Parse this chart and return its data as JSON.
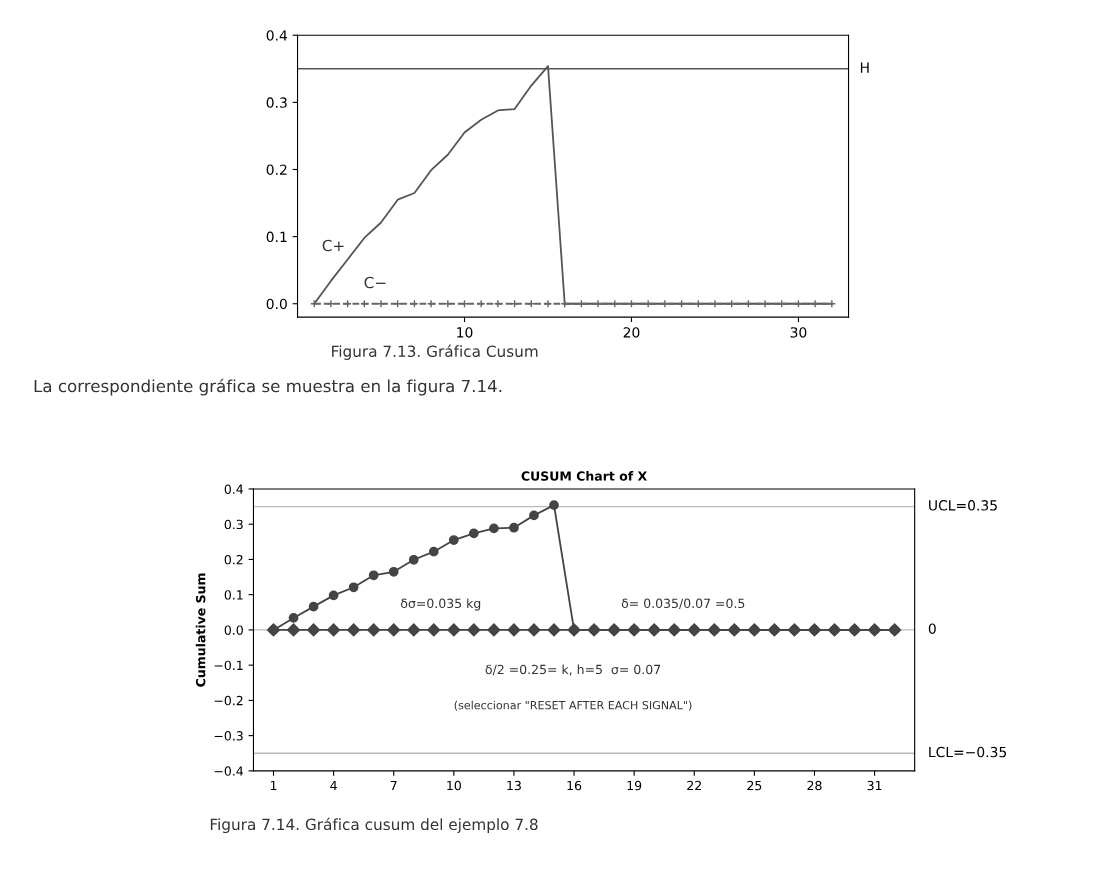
{
  "chart_data": [
    {
      "type": "line",
      "x": [
        1,
        2,
        3,
        4,
        5,
        6,
        7,
        8,
        9,
        10,
        11,
        12,
        13,
        14,
        15,
        16,
        17,
        18,
        19,
        20,
        21,
        22,
        23,
        24,
        25,
        26,
        27,
        28,
        29,
        30,
        31,
        32
      ],
      "series": [
        {
          "color": "#555555",
          "marker": "none",
          "line_style": "solid",
          "values": [
            0,
            0.034,
            0.066,
            0.098,
            0.121,
            0.155,
            0.165,
            0.199,
            0.222,
            0.255,
            0.274,
            0.288,
            0.29,
            0.325,
            0.354,
            0,
            0,
            0,
            0,
            0,
            0,
            0,
            0,
            0,
            0,
            0,
            0,
            0,
            0,
            0,
            0,
            0
          ]
        },
        {
          "color": "#666666",
          "marker": "cross",
          "line_style": "dashed",
          "values": [
            0,
            0,
            0,
            0,
            0,
            0,
            0,
            0,
            0,
            0,
            0,
            0,
            0,
            0,
            0,
            0,
            0,
            0,
            0,
            0,
            0,
            0,
            0,
            0,
            0,
            0,
            0,
            0,
            0,
            0,
            0,
            0
          ]
        }
      ],
      "xlim": [
        0,
        33
      ],
      "xticks": [
        10,
        20,
        30
      ],
      "ylim": [
        -0.02,
        0.4
      ],
      "yticks": [
        {
          "value": 0,
          "label": "0.0"
        },
        0.1,
        0.2,
        0.3,
        0.4
      ],
      "ref_lines": [
        {
          "axis": "y",
          "value": 0.35,
          "label": "H",
          "color": "#555555"
        }
      ],
      "grid": false,
      "legend": false,
      "annotations": [
        "C+",
        "C−",
        "Figura 7.13. Gráfica Cusum",
        "La correspondiente gráfica se muestra en la figura 7.14."
      ]
    },
    {
      "type": "line",
      "title": "CUSUM Chart of X",
      "ylabel": "Cumulative Sum",
      "x": [
        1,
        2,
        3,
        4,
        5,
        6,
        7,
        8,
        9,
        10,
        11,
        12,
        13,
        14,
        15,
        16,
        17,
        18,
        19,
        20,
        21,
        22,
        23,
        24,
        25,
        26,
        27,
        28,
        29,
        30,
        31,
        32
      ],
      "series": [
        {
          "color": "#444444",
          "marker": "circle",
          "line_style": "solid",
          "values": [
            0,
            0.034,
            0.066,
            0.098,
            0.121,
            0.155,
            0.165,
            0.199,
            0.222,
            0.255,
            0.274,
            0.288,
            0.29,
            0.325,
            0.354,
            0,
            0,
            0,
            0,
            0,
            0,
            0,
            0,
            0,
            0,
            0,
            0,
            0,
            0,
            0,
            0,
            0
          ]
        },
        {
          "color": "#444444",
          "marker": "diamond",
          "line_style": "solid",
          "values": [
            0,
            0,
            0,
            0,
            0,
            0,
            0,
            0,
            0,
            0,
            0,
            0,
            0,
            0,
            0,
            0,
            0,
            0,
            0,
            0,
            0,
            0,
            0,
            0,
            0,
            0,
            0,
            0,
            0,
            0,
            0,
            0
          ]
        }
      ],
      "xlim": [
        0,
        33
      ],
      "xticks": [
        1,
        4,
        7,
        10,
        13,
        16,
        19,
        22,
        25,
        28,
        31
      ],
      "ylim": [
        -0.4,
        0.4
      ],
      "yticks": [
        {
          "value": -0.4,
          "label": "−0.4"
        },
        {
          "value": -0.3,
          "label": "−0.3"
        },
        {
          "value": -0.2,
          "label": "−0.2"
        },
        {
          "value": -0.1,
          "label": "−0.1"
        },
        {
          "value": 0,
          "label": "0.0"
        },
        0.1,
        0.2,
        0.3,
        0.4
      ],
      "ref_lines": [
        {
          "axis": "y",
          "value": 0.35,
          "label": "UCL=0.35",
          "color": "#bbbbbb"
        },
        {
          "axis": "y",
          "value": 0,
          "label": "0",
          "color": "#bbbbbb"
        },
        {
          "axis": "y",
          "value": -0.35,
          "label": "LCL=−0.35",
          "color": "#bbbbbb"
        }
      ],
      "grid": false,
      "legend": false,
      "annotations": [
        "δσ=0.035 kg",
        "δ= 0.035/0.07 =0.5",
        "δ/2 =0.25= k, h=5  σ= 0.07",
        "(seleccionar \"RESET AFTER EACH SIGNAL\")",
        "Figura 7.14. Gráfica cusum del ejemplo 7.8"
      ]
    }
  ]
}
